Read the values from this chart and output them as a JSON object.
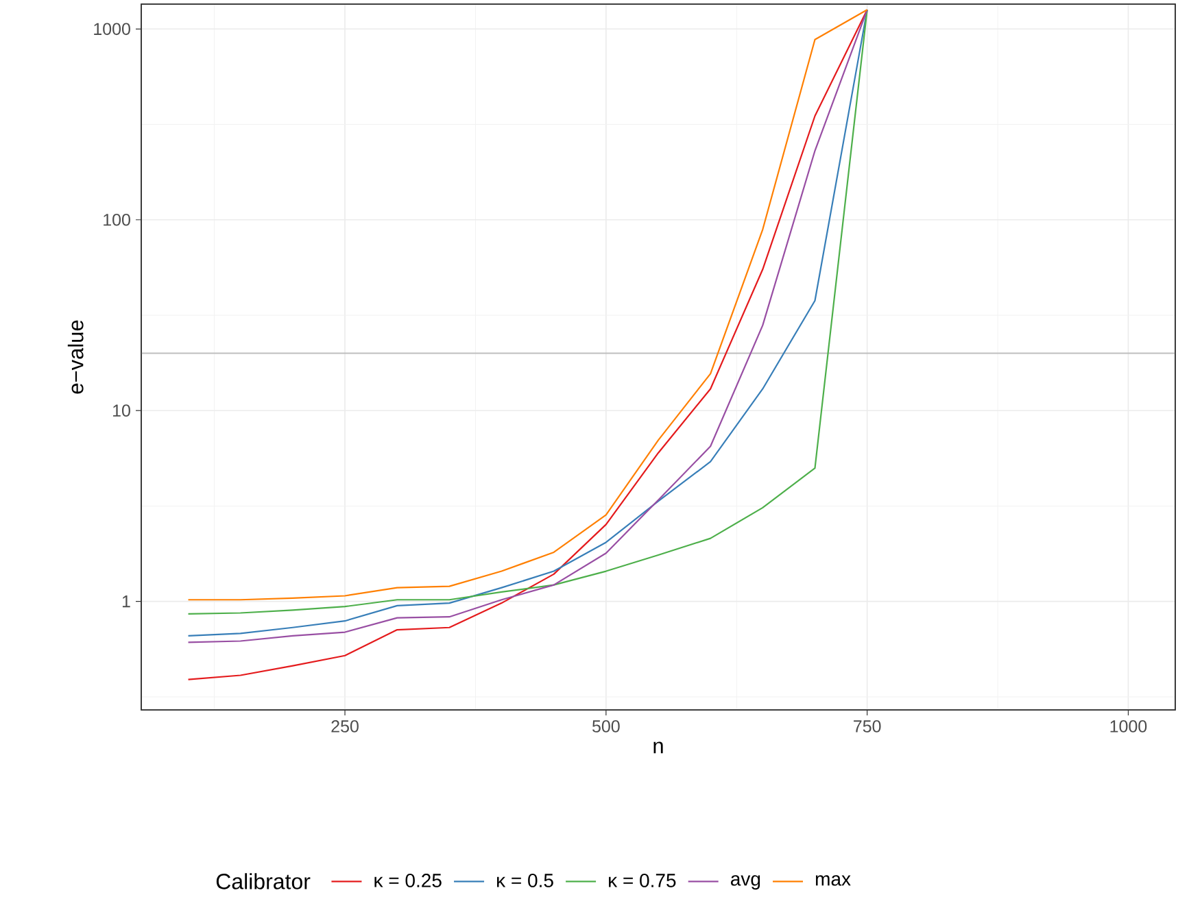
{
  "chart_data": {
    "type": "line",
    "xlabel": "n",
    "ylabel": "e−value",
    "legend_title": "Calibrator",
    "legend": "bottom",
    "grid": true,
    "log": "y",
    "line_style": "solid",
    "marker": "none",
    "x": [
      100,
      150,
      200,
      250,
      300,
      350,
      400,
      450,
      500,
      550,
      600,
      650,
      700,
      750
    ],
    "xlim": [
      55,
      1045
    ],
    "ylim": [
      0.27,
      1350
    ],
    "xticks": [
      250,
      500,
      750,
      1000
    ],
    "yticks": [
      1,
      10,
      100,
      1000
    ],
    "ref_lines": [
      {
        "axis": "y",
        "value": 20,
        "color": "#bebebe"
      }
    ],
    "series": [
      {
        "name": "κ = 0.25",
        "color": "#e41a1c",
        "values": [
          0.39,
          0.41,
          0.46,
          0.52,
          0.71,
          0.73,
          0.98,
          1.39,
          2.53,
          6.0,
          13,
          55,
          350,
          1260
        ]
      },
      {
        "name": "κ = 0.5",
        "color": "#377eb8",
        "values": [
          0.66,
          0.68,
          0.73,
          0.79,
          0.95,
          0.98,
          1.18,
          1.44,
          2.04,
          3.35,
          5.4,
          13,
          37.7,
          1260
        ]
      },
      {
        "name": "κ = 0.75",
        "color": "#4daf4a",
        "values": [
          0.86,
          0.87,
          0.9,
          0.94,
          1.02,
          1.02,
          1.12,
          1.22,
          1.44,
          1.75,
          2.14,
          3.1,
          5.0,
          1260
        ]
      },
      {
        "name": "avg",
        "color": "#984ea3",
        "values": [
          0.61,
          0.62,
          0.66,
          0.69,
          0.82,
          0.83,
          1.02,
          1.22,
          1.79,
          3.4,
          6.5,
          28,
          230,
          1260
        ]
      },
      {
        "name": "max",
        "color": "#ff7f00",
        "values": [
          1.02,
          1.02,
          1.04,
          1.07,
          1.18,
          1.2,
          1.44,
          1.81,
          2.84,
          7.0,
          15.6,
          89,
          880,
          1260
        ]
      }
    ]
  }
}
